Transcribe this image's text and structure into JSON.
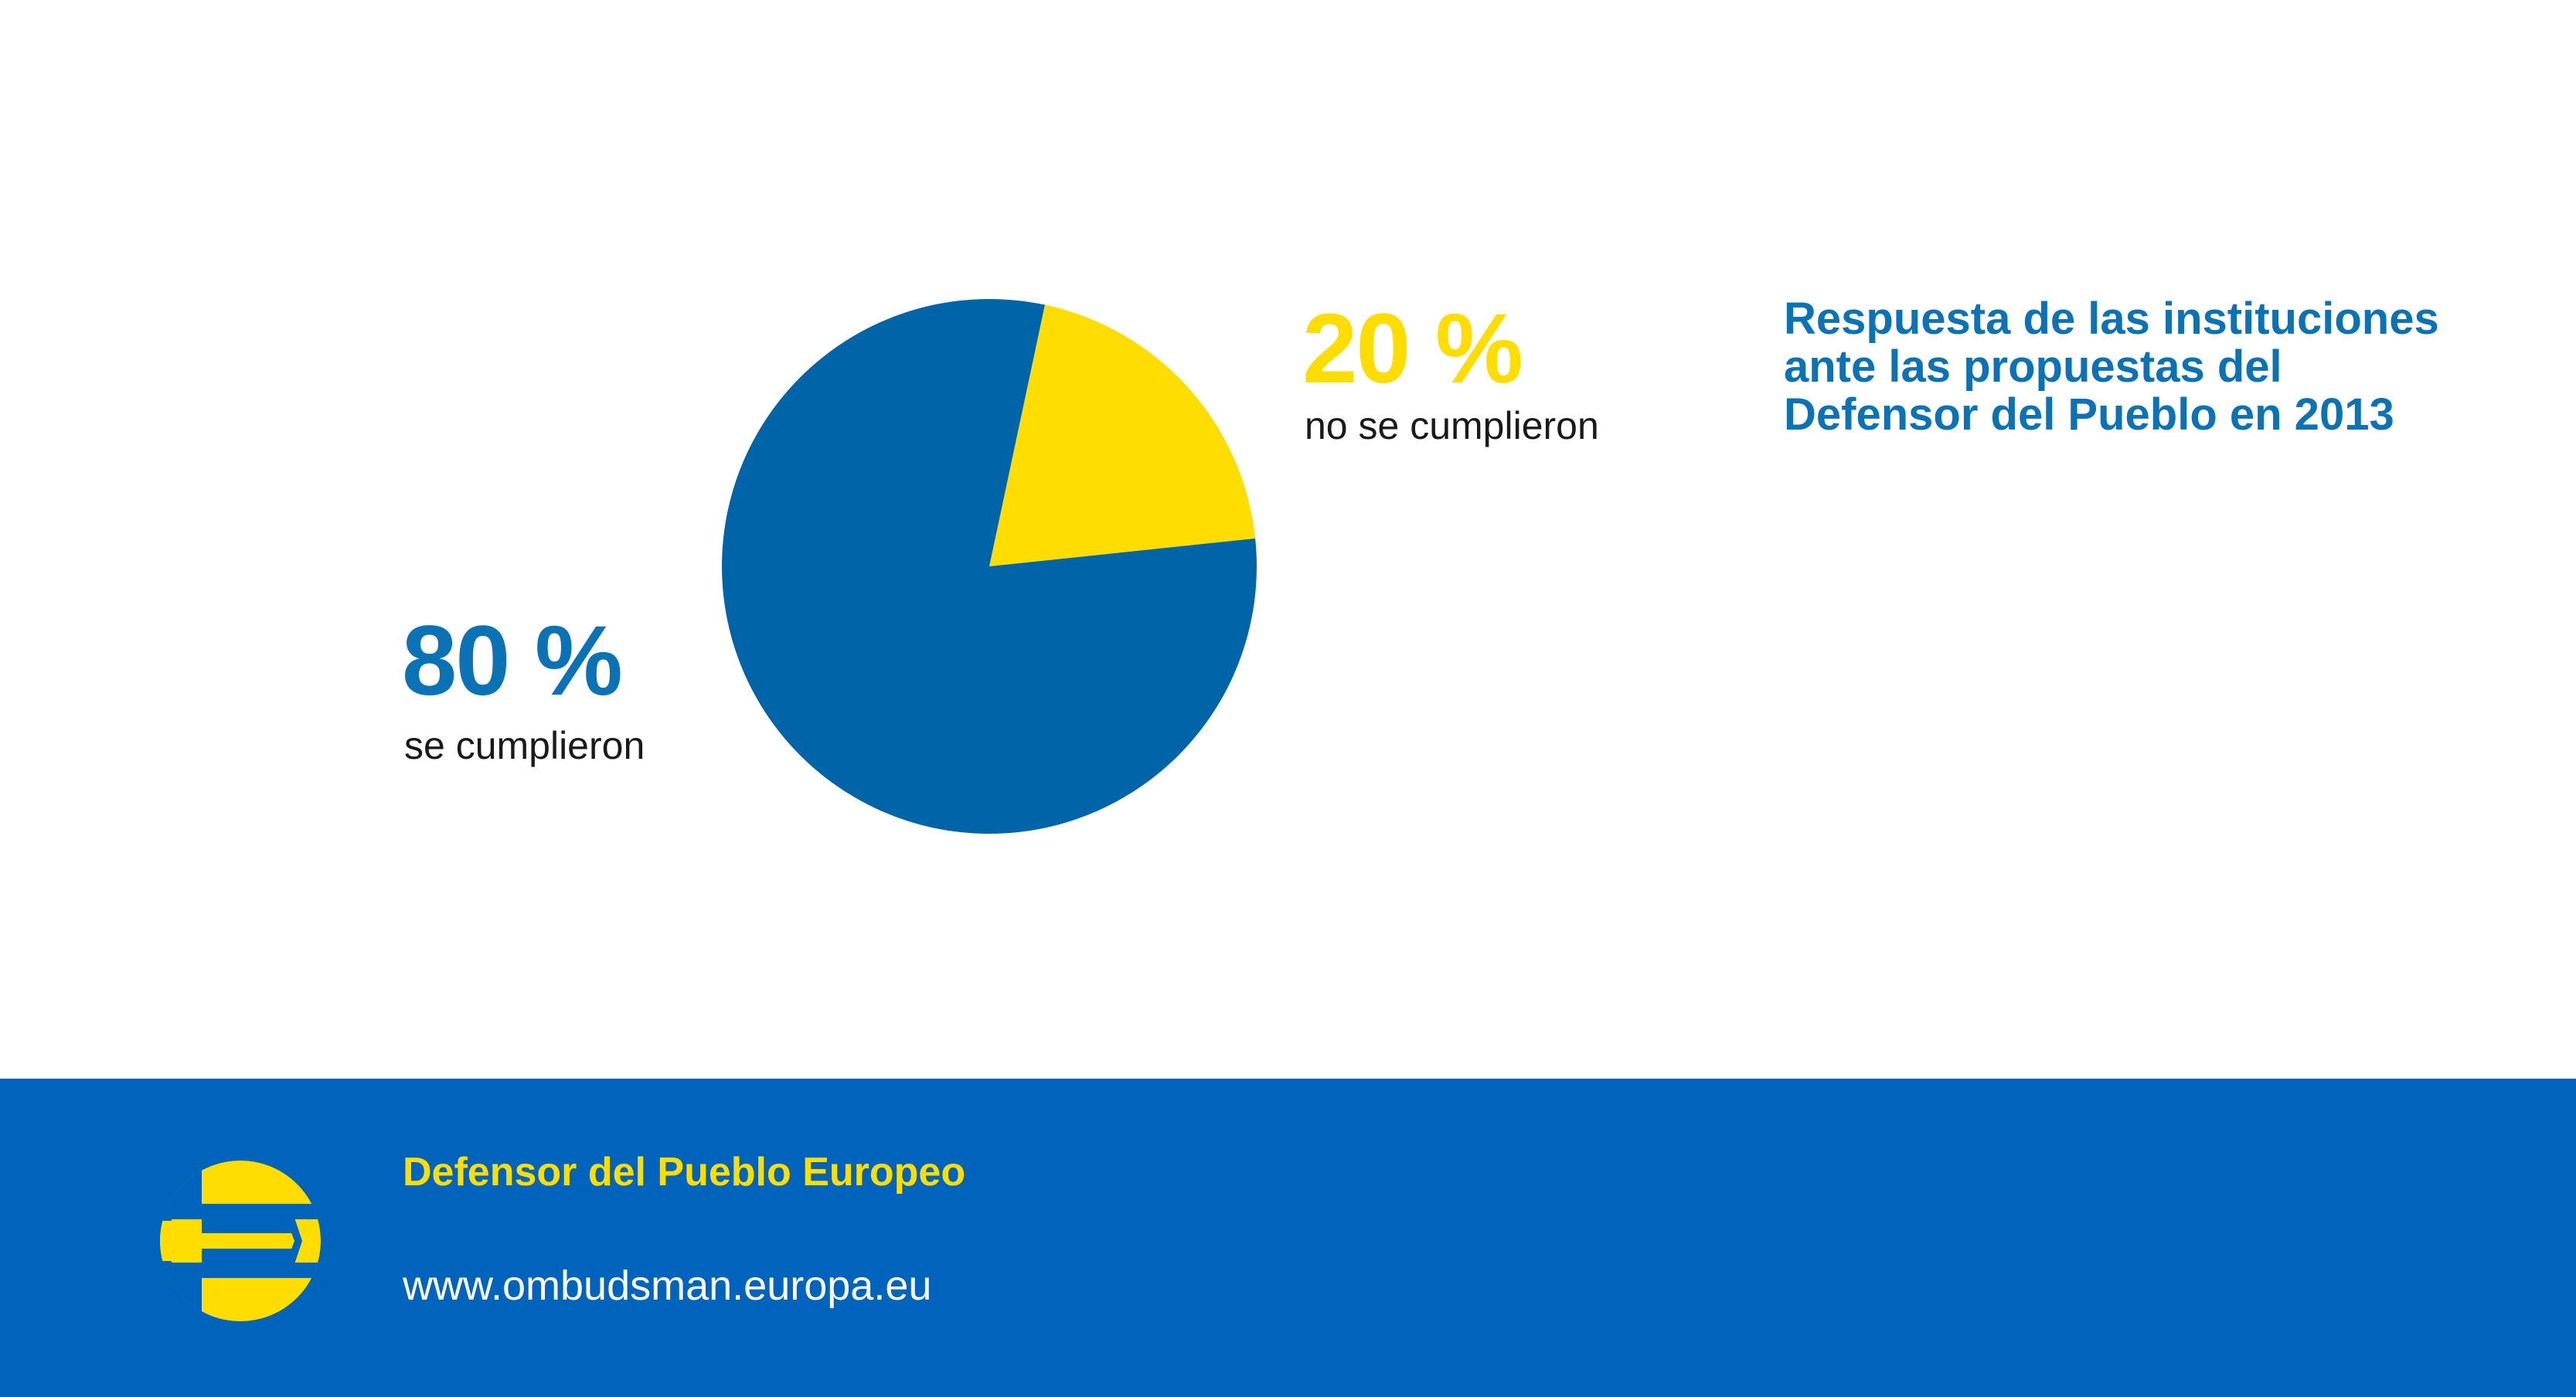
{
  "title_lines": [
    "Respuesta de las instituciones",
    "ante las propuestas del",
    "Defensor del Pueblo en 2013"
  ],
  "chart_data": {
    "type": "pie",
    "title": "Respuesta de las instituciones ante las propuestas del Defensor del Pueblo en 2013",
    "categories": [
      "no se cumplieron",
      "se cumplieron"
    ],
    "values": [
      20,
      80
    ],
    "value_labels": [
      "20 %",
      "80 %"
    ],
    "colors": [
      "#ffdd00",
      "#0064a8"
    ],
    "start_angle_deg": 12
  },
  "labels": {
    "no": {
      "pct": "20 %",
      "text": "no se cumplieron"
    },
    "yes": {
      "pct": "80 %",
      "text": "se cumplieron"
    }
  },
  "footer": {
    "org_name": "Defensor del Pueblo Europeo",
    "url": "www.ombudsman.europa.eu",
    "logo_icon": "european-ombudsman-logo-icon",
    "background": "#0064bd",
    "accent": "#ffdd00"
  }
}
